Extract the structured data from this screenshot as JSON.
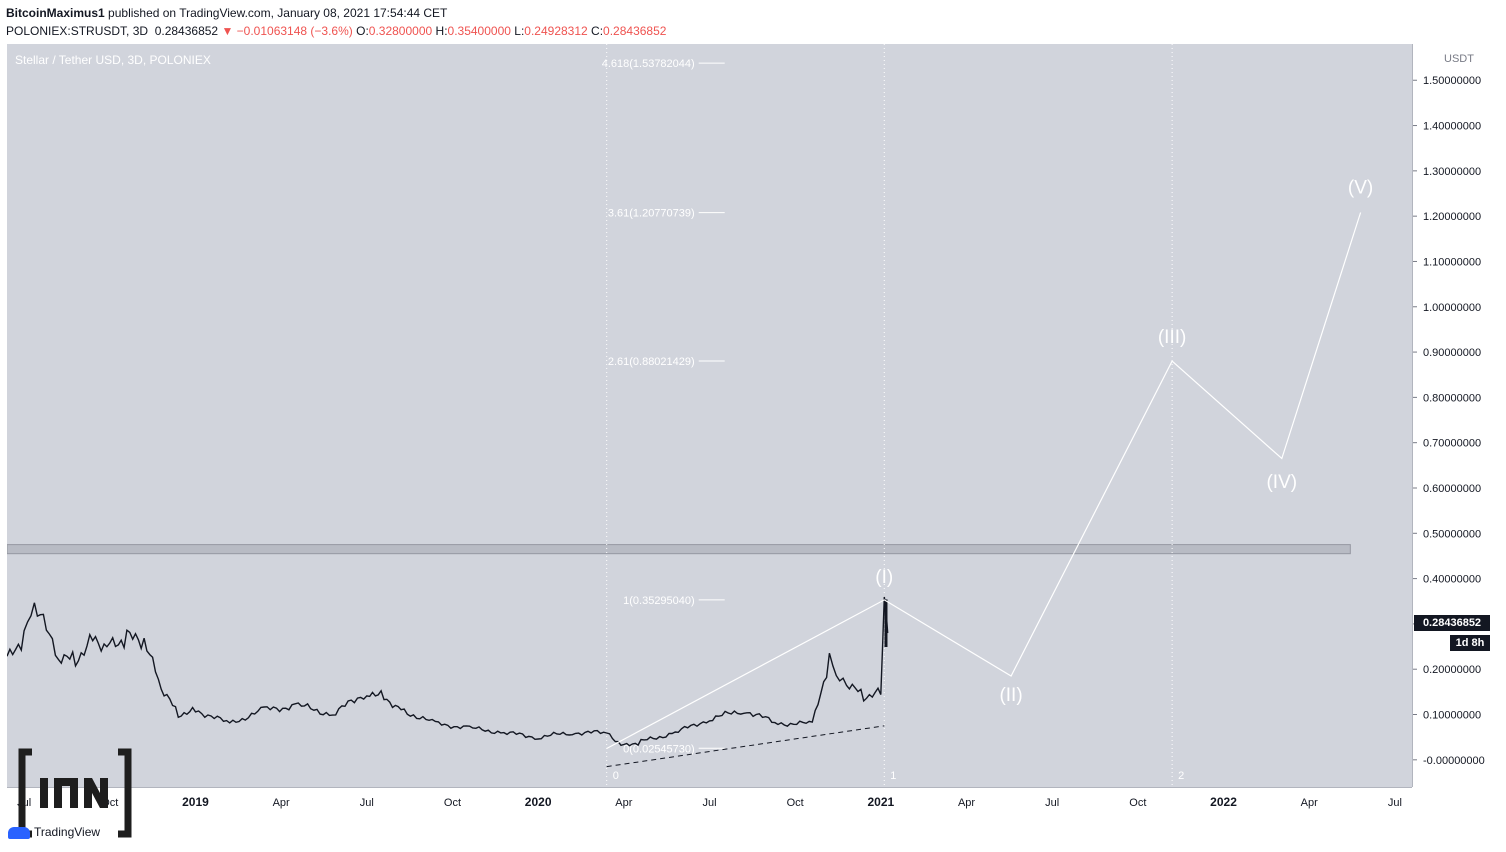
{
  "header": {
    "author": "BitcoinMaximus1",
    "published": "published on TradingView.com, January 08, 2021 17:54:44 CET",
    "symbol": "POLONIEX:STRUSDT, 3D",
    "last": "0.28436852",
    "change": "▼ −0.01063148 (−3.6%)",
    "open_label": "O:",
    "open": "0.32800000",
    "high_label": "H:",
    "high": "0.35400000",
    "low_label": "L:",
    "low": "0.24928312",
    "close_label": "C:",
    "close": "0.28436852"
  },
  "symbol_title": "Stellar / Tether USD, 3D, POLONIEX",
  "price_tag": "0.28436852",
  "time_tag": "1d 8h",
  "brand": "TradingView",
  "colors": {
    "plot_bg": "#d1d4dc",
    "wave": "#ffffff",
    "candles": "#131722",
    "red": "#ef5350"
  },
  "chart_data": {
    "type": "line",
    "title": "Stellar / Tether USD, 3D, POLONIEX",
    "ylabel": "USDT",
    "ylim": [
      -0.06,
      1.58
    ],
    "y_ticks": [
      "1.50000000",
      "1.40000000",
      "1.30000000",
      "1.20000000",
      "1.10000000",
      "1.00000000",
      "0.90000000",
      "0.80000000",
      "0.70000000",
      "0.60000000",
      "0.50000000",
      "0.40000000",
      "0.30000000",
      "0.20000000",
      "0.10000000",
      "-0.00000000"
    ],
    "y_tick_values": [
      1.5,
      1.4,
      1.3,
      1.2,
      1.1,
      1.0,
      0.9,
      0.8,
      0.7,
      0.6,
      0.5,
      0.4,
      0.3,
      0.2,
      0.1,
      0.0
    ],
    "x_ticks": [
      "Jul",
      "Oct",
      "2019",
      "Apr",
      "Jul",
      "Oct",
      "2020",
      "Apr",
      "Jul",
      "Oct",
      "2021",
      "Apr",
      "Jul",
      "Oct",
      "2022",
      "Apr",
      "Jul"
    ],
    "x_tick_dates": [
      2018.5,
      2018.75,
      2019.0,
      2019.25,
      2019.5,
      2019.75,
      2020.0,
      2020.25,
      2020.5,
      2020.75,
      2021.0,
      2021.25,
      2021.5,
      2021.75,
      2022.0,
      2022.25,
      2022.5
    ],
    "x_range": [
      2018.45,
      2022.55
    ],
    "price_series": {
      "name": "STRUSDT",
      "dates": [
        2018.45,
        2018.5,
        2018.53,
        2018.6,
        2018.65,
        2018.7,
        2018.75,
        2018.8,
        2018.85,
        2018.9,
        2018.95,
        2019.0,
        2019.1,
        2019.2,
        2019.3,
        2019.4,
        2019.5,
        2019.55,
        2019.6,
        2019.7,
        2019.8,
        2019.9,
        2020.0,
        2020.1,
        2020.2,
        2020.25,
        2020.3,
        2020.4,
        2020.5,
        2020.6,
        2020.7,
        2020.8,
        2020.85,
        2020.87,
        2020.9,
        2020.95,
        2021.0,
        2021.01,
        2021.02
      ],
      "values": [
        0.22,
        0.27,
        0.34,
        0.23,
        0.22,
        0.27,
        0.25,
        0.27,
        0.26,
        0.16,
        0.1,
        0.11,
        0.08,
        0.11,
        0.12,
        0.1,
        0.15,
        0.14,
        0.11,
        0.08,
        0.07,
        0.06,
        0.05,
        0.06,
        0.06,
        0.03,
        0.04,
        0.06,
        0.09,
        0.11,
        0.08,
        0.08,
        0.22,
        0.18,
        0.17,
        0.14,
        0.15,
        0.35,
        0.28
      ]
    },
    "wave_path": {
      "dates": [
        2020.2,
        2021.01,
        2021.38,
        2021.85,
        2022.17,
        2022.4
      ],
      "values": [
        0.025,
        0.353,
        0.185,
        0.88,
        0.665,
        1.208
      ]
    },
    "wave_labels": [
      {
        "label": "(I)",
        "date": 2021.01,
        "value": 0.39
      },
      {
        "label": "(II)",
        "date": 2021.38,
        "value": 0.13
      },
      {
        "label": "(III)",
        "date": 2021.85,
        "value": 0.92
      },
      {
        "label": "(IV)",
        "date": 2022.17,
        "value": 0.6
      },
      {
        "label": "(V)",
        "date": 2022.4,
        "value": 1.25
      }
    ],
    "fib_levels": [
      {
        "label": "4.618(1.53782044)",
        "value": 1.53782044
      },
      {
        "label": "3.61(1.20770739)",
        "value": 1.20770739
      },
      {
        "label": "2.61(0.88021429)",
        "value": 0.88021429
      },
      {
        "label": "1(0.35295040)",
        "value": 0.3529504
      },
      {
        "label": "0(0.02545730)",
        "value": 0.0254573
      }
    ],
    "fib_anchor_date": 2020.2,
    "resistance_zone": [
      0.455,
      0.475
    ],
    "support_trendline": {
      "dates": [
        2020.2,
        2021.01
      ],
      "values": [
        -0.015,
        0.075
      ]
    },
    "vertical_markers": [
      {
        "label": "0",
        "date": 2020.2
      },
      {
        "label": "1",
        "date": 2021.01
      },
      {
        "label": "2",
        "date": 2021.85
      }
    ]
  }
}
